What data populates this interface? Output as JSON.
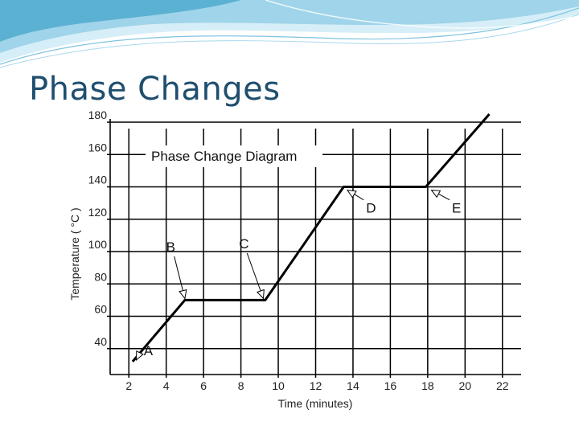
{
  "slide": {
    "title": "Phase Changes"
  },
  "colors": {
    "title": "#1f4e6e",
    "swoosh_light": "#d6eef7",
    "swoosh_mid": "#9fd4ea",
    "swoosh_dark": "#4aa8cc",
    "grid": "#000000",
    "line": "#000000"
  },
  "chart_data": {
    "type": "line",
    "title": "Phase Change Diagram",
    "xlabel": "Time (minutes)",
    "ylabel": "Temperature ( °C )",
    "xlim": [
      1,
      23
    ],
    "ylim": [
      24,
      182
    ],
    "xticks": [
      2,
      4,
      6,
      8,
      10,
      12,
      14,
      16,
      18,
      20,
      22
    ],
    "yticks": [
      40,
      60,
      80,
      100,
      120,
      140,
      160,
      180
    ],
    "grid": true,
    "series": [
      {
        "x": [
          2.2,
          5.0,
          9.3,
          13.5,
          17.9,
          21.3
        ],
        "y": [
          32,
          70,
          70,
          140,
          140,
          185
        ]
      }
    ],
    "annotations": [
      {
        "label": "A",
        "text_at": [
          2.8,
          36
        ],
        "arrow_to": [
          2.4,
          33
        ]
      },
      {
        "label": "B",
        "text_at": [
          4.0,
          100
        ],
        "arrow_to": [
          5.0,
          71
        ]
      },
      {
        "label": "C",
        "text_at": [
          7.9,
          102
        ],
        "arrow_to": [
          9.2,
          71
        ]
      },
      {
        "label": "D",
        "text_at": [
          14.7,
          124
        ],
        "arrow_to": [
          13.7,
          138
        ]
      },
      {
        "label": "E",
        "text_at": [
          19.3,
          124
        ],
        "arrow_to": [
          18.2,
          138
        ]
      }
    ]
  }
}
